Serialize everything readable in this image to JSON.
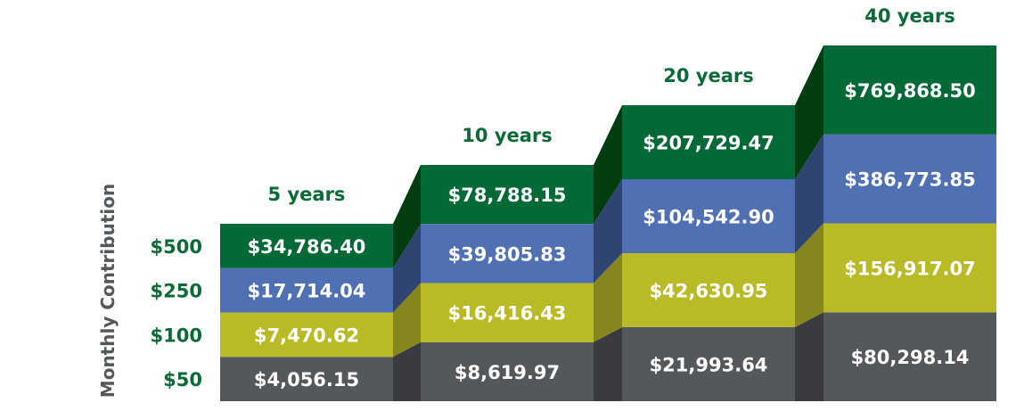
{
  "chart_data": {
    "type": "bar",
    "stacked": true,
    "title": "",
    "ylabel": "Monthly Contribution",
    "xlabel": "",
    "categories": [
      "5 years",
      "10 years",
      "20 years",
      "40 years"
    ],
    "series": [
      {
        "name": "$50",
        "color": "#55585b",
        "side_color": "#3a3b3e",
        "values": [
          4056.15,
          8619.97,
          21993.64,
          80298.14
        ],
        "labels": [
          "$4,056.15",
          "$8,619.97",
          "$21,993.64",
          "$80,298.14"
        ]
      },
      {
        "name": "$100",
        "color": "#b8bb26",
        "side_color": "#85861e",
        "values": [
          7470.62,
          16416.43,
          42630.95,
          156917.07
        ],
        "labels": [
          "$7,470.62",
          "$16,416.43",
          "$42,630.95",
          "$156,917.07"
        ]
      },
      {
        "name": "$250",
        "color": "#5070b4",
        "side_color": "#2f4470",
        "values": [
          17714.04,
          39805.83,
          104542.9,
          386773.85
        ],
        "labels": [
          "$17,714.04",
          "$39,805.83",
          "$104,542.90",
          "$386,773.85"
        ]
      },
      {
        "name": "$500",
        "color": "#036937",
        "side_color": "#013d10",
        "values": [
          34786.4,
          78788.15,
          207729.47,
          769868.5
        ],
        "labels": [
          "$34,786.40",
          "$78,788.15",
          "$207,729.47",
          "$769,868.50"
        ]
      }
    ],
    "accent_color": "#0b6a38",
    "axis_label_color": "#55585b"
  }
}
